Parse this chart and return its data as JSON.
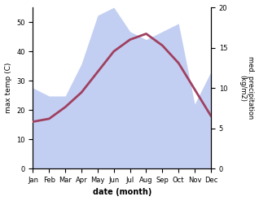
{
  "months": [
    "Jan",
    "Feb",
    "Mar",
    "Apr",
    "May",
    "Jun",
    "Jul",
    "Aug",
    "Sep",
    "Oct",
    "Nov",
    "Dec"
  ],
  "max_temp": [
    16,
    17,
    21,
    26,
    33,
    40,
    44,
    46,
    42,
    36,
    27,
    18
  ],
  "precipitation": [
    10,
    9,
    9,
    13,
    19,
    20,
    17,
    16,
    17,
    18,
    8,
    12
  ],
  "temp_color": "#a04060",
  "area_color": "#afc0ee",
  "area_alpha": 0.75,
  "xlabel": "date (month)",
  "ylabel_left": "max temp (C)",
  "ylabel_right": "med. precipitation\n(kg/m2)",
  "ylim_left": [
    0,
    55
  ],
  "ylim_right": [
    0,
    20
  ],
  "yticks_left": [
    0,
    10,
    20,
    30,
    40,
    50
  ],
  "yticks_right": [
    0,
    5,
    10,
    15,
    20
  ],
  "bg_color": "#ffffff",
  "line_width": 2.0
}
